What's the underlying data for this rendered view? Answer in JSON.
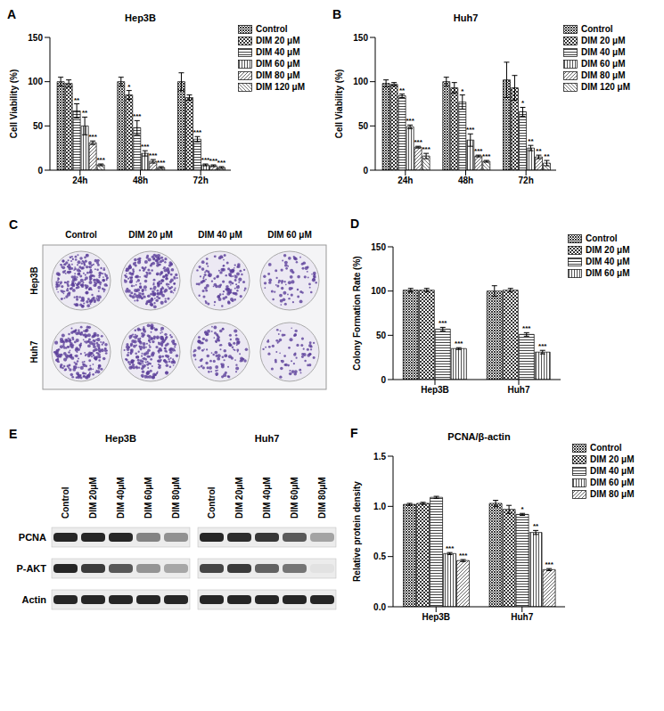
{
  "chart_data": [
    {
      "panel": "A",
      "type": "bar",
      "title": "Hep3B",
      "ylabel": "Cell Viability (%)",
      "categories": [
        "24h",
        "48h",
        "72h"
      ],
      "ylim": [
        0,
        150
      ],
      "yticks": [
        0,
        50,
        100,
        150
      ],
      "series": [
        {
          "name": "Control",
          "color": "#222222",
          "values": [
            100,
            100,
            100
          ],
          "errors": [
            5,
            5,
            10
          ],
          "annotations": [
            null,
            null,
            null
          ]
        },
        {
          "name": "DIM 20 μM",
          "color": "#333333",
          "values": [
            98,
            85,
            82
          ],
          "errors": [
            4,
            5,
            3
          ],
          "annotations": [
            null,
            "*",
            null
          ]
        },
        {
          "name": "DIM 40 μM",
          "color": "#444444",
          "values": [
            67,
            48,
            35
          ],
          "errors": [
            8,
            8,
            3
          ],
          "annotations": [
            "**",
            "***",
            "***"
          ]
        },
        {
          "name": "DIM 60 μM",
          "color": "#555555",
          "values": [
            50,
            19,
            6
          ],
          "errors": [
            10,
            3,
            1
          ],
          "annotations": [
            "**",
            "***",
            "***"
          ]
        },
        {
          "name": "DIM 80 μM",
          "color": "#666666",
          "values": [
            31,
            10,
            5
          ],
          "errors": [
            2,
            2,
            1
          ],
          "annotations": [
            "***",
            "***",
            "***"
          ]
        },
        {
          "name": "DIM 120 μM",
          "color": "#777777",
          "values": [
            6,
            3,
            3
          ],
          "errors": [
            1,
            1,
            1
          ],
          "annotations": [
            "***",
            "***",
            "***"
          ]
        }
      ]
    },
    {
      "panel": "B",
      "type": "bar",
      "title": "Huh7",
      "ylabel": "Cell Viability (%)",
      "categories": [
        "24h",
        "48h",
        "72h"
      ],
      "ylim": [
        0,
        150
      ],
      "yticks": [
        0,
        50,
        100,
        150
      ],
      "series": [
        {
          "name": "Control",
          "color": "#222222",
          "values": [
            98,
            100,
            102
          ],
          "errors": [
            4,
            5,
            20
          ],
          "annotations": [
            null,
            null,
            null
          ]
        },
        {
          "name": "DIM 20 μM",
          "color": "#333333",
          "values": [
            97,
            93,
            93
          ],
          "errors": [
            2,
            6,
            14
          ],
          "annotations": [
            null,
            null,
            null
          ]
        },
        {
          "name": "DIM 40 μM",
          "color": "#444444",
          "values": [
            84,
            77,
            66
          ],
          "errors": [
            2,
            8,
            5
          ],
          "annotations": [
            "**",
            "*",
            "*"
          ]
        },
        {
          "name": "DIM 60 μM",
          "color": "#555555",
          "values": [
            49,
            34,
            25
          ],
          "errors": [
            2,
            7,
            3
          ],
          "annotations": [
            "***",
            "***",
            "**"
          ]
        },
        {
          "name": "DIM 80 μM",
          "color": "#666666",
          "values": [
            26,
            16,
            15
          ],
          "errors": [
            1,
            1,
            2
          ],
          "annotations": [
            "***",
            "***",
            "**"
          ]
        },
        {
          "name": "DIM 120 μM",
          "color": "#777777",
          "values": [
            16,
            10,
            8
          ],
          "errors": [
            3,
            1,
            3
          ],
          "annotations": [
            "***",
            "***",
            "**"
          ]
        }
      ]
    },
    {
      "panel": "D",
      "type": "bar",
      "ylabel": "Colony Formation Rate (%)",
      "categories": [
        "Hep3B",
        "Huh7"
      ],
      "ylim": [
        0,
        150
      ],
      "yticks": [
        0,
        50,
        100,
        150
      ],
      "series": [
        {
          "name": "Control",
          "color": "#222222",
          "values": [
            101,
            100
          ],
          "errors": [
            2,
            6
          ],
          "annotations": [
            null,
            null
          ]
        },
        {
          "name": "DIM 20 μM",
          "color": "#333333",
          "values": [
            101,
            101
          ],
          "errors": [
            2,
            2
          ],
          "annotations": [
            null,
            null
          ]
        },
        {
          "name": "DIM 40 μM",
          "color": "#444444",
          "values": [
            57,
            51
          ],
          "errors": [
            2,
            2
          ],
          "annotations": [
            "***",
            "***"
          ]
        },
        {
          "name": "DIM 60 μM",
          "color": "#555555",
          "values": [
            35,
            31
          ],
          "errors": [
            1,
            2
          ],
          "annotations": [
            "***",
            "***"
          ]
        }
      ]
    },
    {
      "panel": "F",
      "type": "bar",
      "title": "PCNA/β-actin",
      "ylabel": "Relative protein density",
      "categories": [
        "Hep3B",
        "Huh7"
      ],
      "ylim": [
        0,
        1.5
      ],
      "yticks": [
        {
          "value": 0,
          "label": "0.0"
        },
        0.5,
        {
          "value": 1,
          "label": "1.0"
        },
        1.5
      ],
      "series": [
        {
          "name": "Control",
          "color": "#222222",
          "values": [
            1.02,
            1.03
          ],
          "errors": [
            0.01,
            0.03
          ],
          "annotations": [
            null,
            null
          ]
        },
        {
          "name": "DIM 20 μM",
          "color": "#333333",
          "values": [
            1.03,
            0.97
          ],
          "errors": [
            0.01,
            0.04
          ],
          "annotations": [
            null,
            null
          ]
        },
        {
          "name": "DIM 40 μM",
          "color": "#444444",
          "values": [
            1.09,
            0.92
          ],
          "errors": [
            0.01,
            0.01
          ],
          "annotations": [
            null,
            "*"
          ]
        },
        {
          "name": "DIM 60 μM",
          "color": "#555555",
          "values": [
            0.53,
            0.74
          ],
          "errors": [
            0.01,
            0.02
          ],
          "annotations": [
            "***",
            "**"
          ]
        },
        {
          "name": "DIM 80 μM",
          "color": "#666666",
          "values": [
            0.46,
            0.37
          ],
          "errors": [
            0.01,
            0.01
          ],
          "annotations": [
            "***",
            "***"
          ]
        }
      ]
    }
  ],
  "images": [
    {
      "panel": "C",
      "columns": [
        "Control",
        "DIM 20 μM",
        "DIM 40 μM",
        "DIM 60 μM"
      ],
      "rows": [
        "Hep3B",
        "Huh7"
      ]
    },
    {
      "panel": "E",
      "groups": [
        {
          "title": "Hep3B",
          "lanes": [
            "Control",
            "DIM 20μM",
            "DIM 40μM",
            "DIM 60μM",
            "DIM 80μM"
          ]
        },
        {
          "title": "Huh7",
          "lanes": [
            "Control",
            "DIM 20μM",
            "DIM 40μM",
            "DIM 60μM",
            "DIM 80μM"
          ]
        }
      ],
      "rows": [
        "PCNA",
        "P-AKT",
        "Actin"
      ]
    }
  ]
}
